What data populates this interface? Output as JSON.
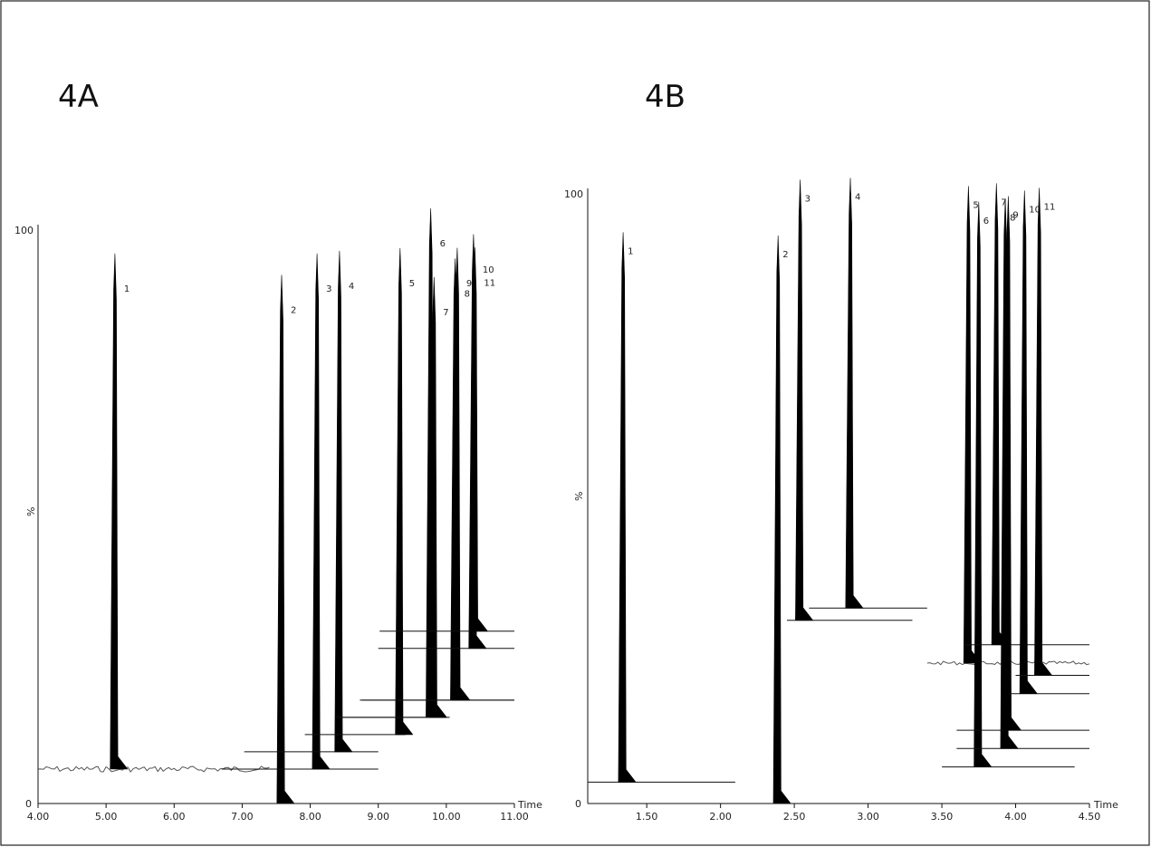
{
  "chart_data": [
    {
      "type": "line",
      "panel_label": "4A",
      "xlabel": "Time",
      "ylabel": "%",
      "xlim": [
        4.0,
        11.0
      ],
      "ylim": [
        0,
        100
      ],
      "x_ticks": [
        4.0,
        5.0,
        6.0,
        7.0,
        8.0,
        9.0,
        10.0,
        11.0
      ],
      "x_tick_labels": [
        "4.00",
        "5.00",
        "6.00",
        "7.00",
        "8.00",
        "9.00",
        "10.00",
        "11.00"
      ],
      "y_tick_labels": [
        "0",
        "100"
      ],
      "peaks": [
        {
          "label": "1",
          "time": 5.13,
          "relative_height": 103
        },
        {
          "label": "2",
          "time": 7.58,
          "relative_height": 100
        },
        {
          "label": "3",
          "time": 8.1,
          "relative_height": 103
        },
        {
          "label": "4",
          "time": 8.43,
          "relative_height": 103
        },
        {
          "label": "5",
          "time": 9.32,
          "relative_height": 103
        },
        {
          "label": "6",
          "time": 9.77,
          "relative_height": 110
        },
        {
          "label": "7",
          "time": 9.82,
          "relative_height": 97
        },
        {
          "label": "8",
          "time": 10.13,
          "relative_height": 100
        },
        {
          "label": "9",
          "time": 10.16,
          "relative_height": 102
        },
        {
          "label": "10",
          "time": 10.4,
          "relative_height": 103
        },
        {
          "label": "11",
          "time": 10.42,
          "relative_height": 100
        }
      ],
      "baseline_offsets": [
        6,
        0,
        6,
        9,
        12,
        15,
        15,
        18,
        18,
        27,
        30
      ],
      "trace_end_times": [
        7.4,
        7.7,
        9.0,
        9.0,
        9.4,
        10.0,
        10.05,
        11.0,
        11.0,
        11.0,
        11.0
      ]
    },
    {
      "type": "line",
      "panel_label": "4B",
      "xlabel": "Time",
      "ylabel": "%",
      "xlim": [
        1.1,
        4.5
      ],
      "ylim": [
        0,
        100
      ],
      "x_ticks": [
        1.5,
        2.0,
        2.5,
        3.0,
        3.5,
        4.0,
        4.5
      ],
      "x_tick_labels": [
        "1.50",
        "2.00",
        "2.50",
        "3.00",
        "3.50",
        "4.00",
        "4.50"
      ],
      "y_tick_labels": [
        "0",
        "100"
      ],
      "peaks": [
        {
          "label": "1",
          "time": 1.34,
          "relative_height": 100
        },
        {
          "label": "2",
          "time": 2.39,
          "relative_height": 100
        },
        {
          "label": "3",
          "time": 2.54,
          "relative_height": 105
        },
        {
          "label": "4",
          "time": 2.88,
          "relative_height": 105
        },
        {
          "label": "5",
          "time": 3.68,
          "relative_height": 105
        },
        {
          "label": "6",
          "time": 3.75,
          "relative_height": 105
        },
        {
          "label": "7",
          "time": 3.87,
          "relative_height": 105
        },
        {
          "label": "8",
          "time": 3.93,
          "relative_height": 105
        },
        {
          "label": "9",
          "time": 3.95,
          "relative_height": 105
        },
        {
          "label": "10",
          "time": 4.06,
          "relative_height": 105
        },
        {
          "label": "11",
          "time": 4.16,
          "relative_height": 105
        }
      ],
      "baseline_offsets": [
        3.5,
        0,
        30,
        32,
        23,
        6,
        26,
        9,
        12,
        18,
        21
      ],
      "trace_start_times": [
        1.1,
        2.1,
        2.45,
        2.6,
        3.4,
        3.5,
        3.65,
        3.6,
        3.6,
        3.95,
        4.0
      ],
      "trace_end_times": [
        2.1,
        2.7,
        3.3,
        3.4,
        4.5,
        4.4,
        4.5,
        4.5,
        4.5,
        4.5,
        4.5
      ]
    }
  ]
}
